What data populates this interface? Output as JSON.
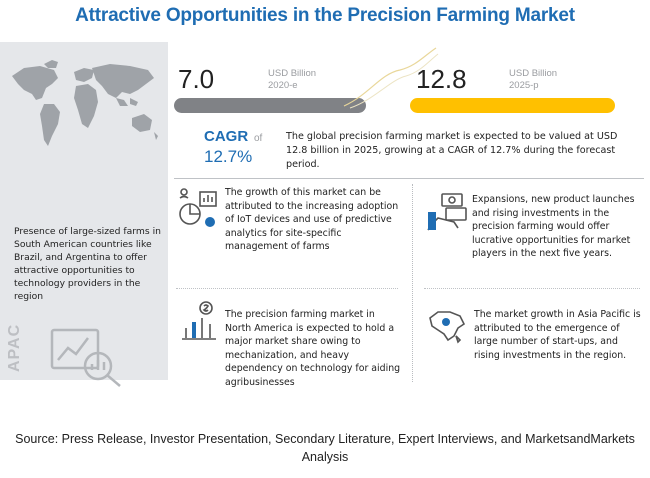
{
  "title": "Attractive Opportunities in the Precision Farming Market",
  "stats": {
    "value_2020": "7.0",
    "unit_2020": "USD Billion",
    "year_2020": "2020-e",
    "value_2025": "12.8",
    "unit_2025": "USD Billion",
    "year_2025": "2025-p"
  },
  "cagr": {
    "label": "CAGR",
    "of": "of",
    "value": "12.7%"
  },
  "summary": "The global precision farming market is expected to be valued at USD 12.8 billion in 2025, growing at a CAGR of 12.7% during the forecast period.",
  "left_panel": {
    "text": "Presence of large-sized farms in South American countries like Brazil, and Argentina to offer attractive opportunities to technology providers in the region",
    "vertical_label": "APAC"
  },
  "blocks": [
    "The growth of this market can be attributed to the increasing adoption of IoT devices and use of predictive analytics for site-specific management of farms",
    "Expansions, new product launches and rising investments in the precision farming would offer lucrative opportunities for market players in the next five years.",
    "The precision farming market in North America is expected to hold a major market share owing to mechanization, and heavy dependency on technology for aiding agribusinesses",
    "The market growth in Asia Pacific is attributed to the emergence of large number of start-ups, and rising investments in the region."
  ],
  "source": "Source: Press Release, Investor Presentation, Secondary Literature, Expert Interviews, and MarketsandMarkets Analysis",
  "colors": {
    "title_blue": "#1f6db3",
    "bar_gray": "#808286",
    "bar_yellow": "#ffc000",
    "panel_gray": "#e5e7ea"
  },
  "icons": [
    "world-map-icon",
    "analytics-magnifier-icon",
    "iot-analytics-icon",
    "investment-hand-icon",
    "dollar-growth-icon",
    "asia-map-icon"
  ]
}
